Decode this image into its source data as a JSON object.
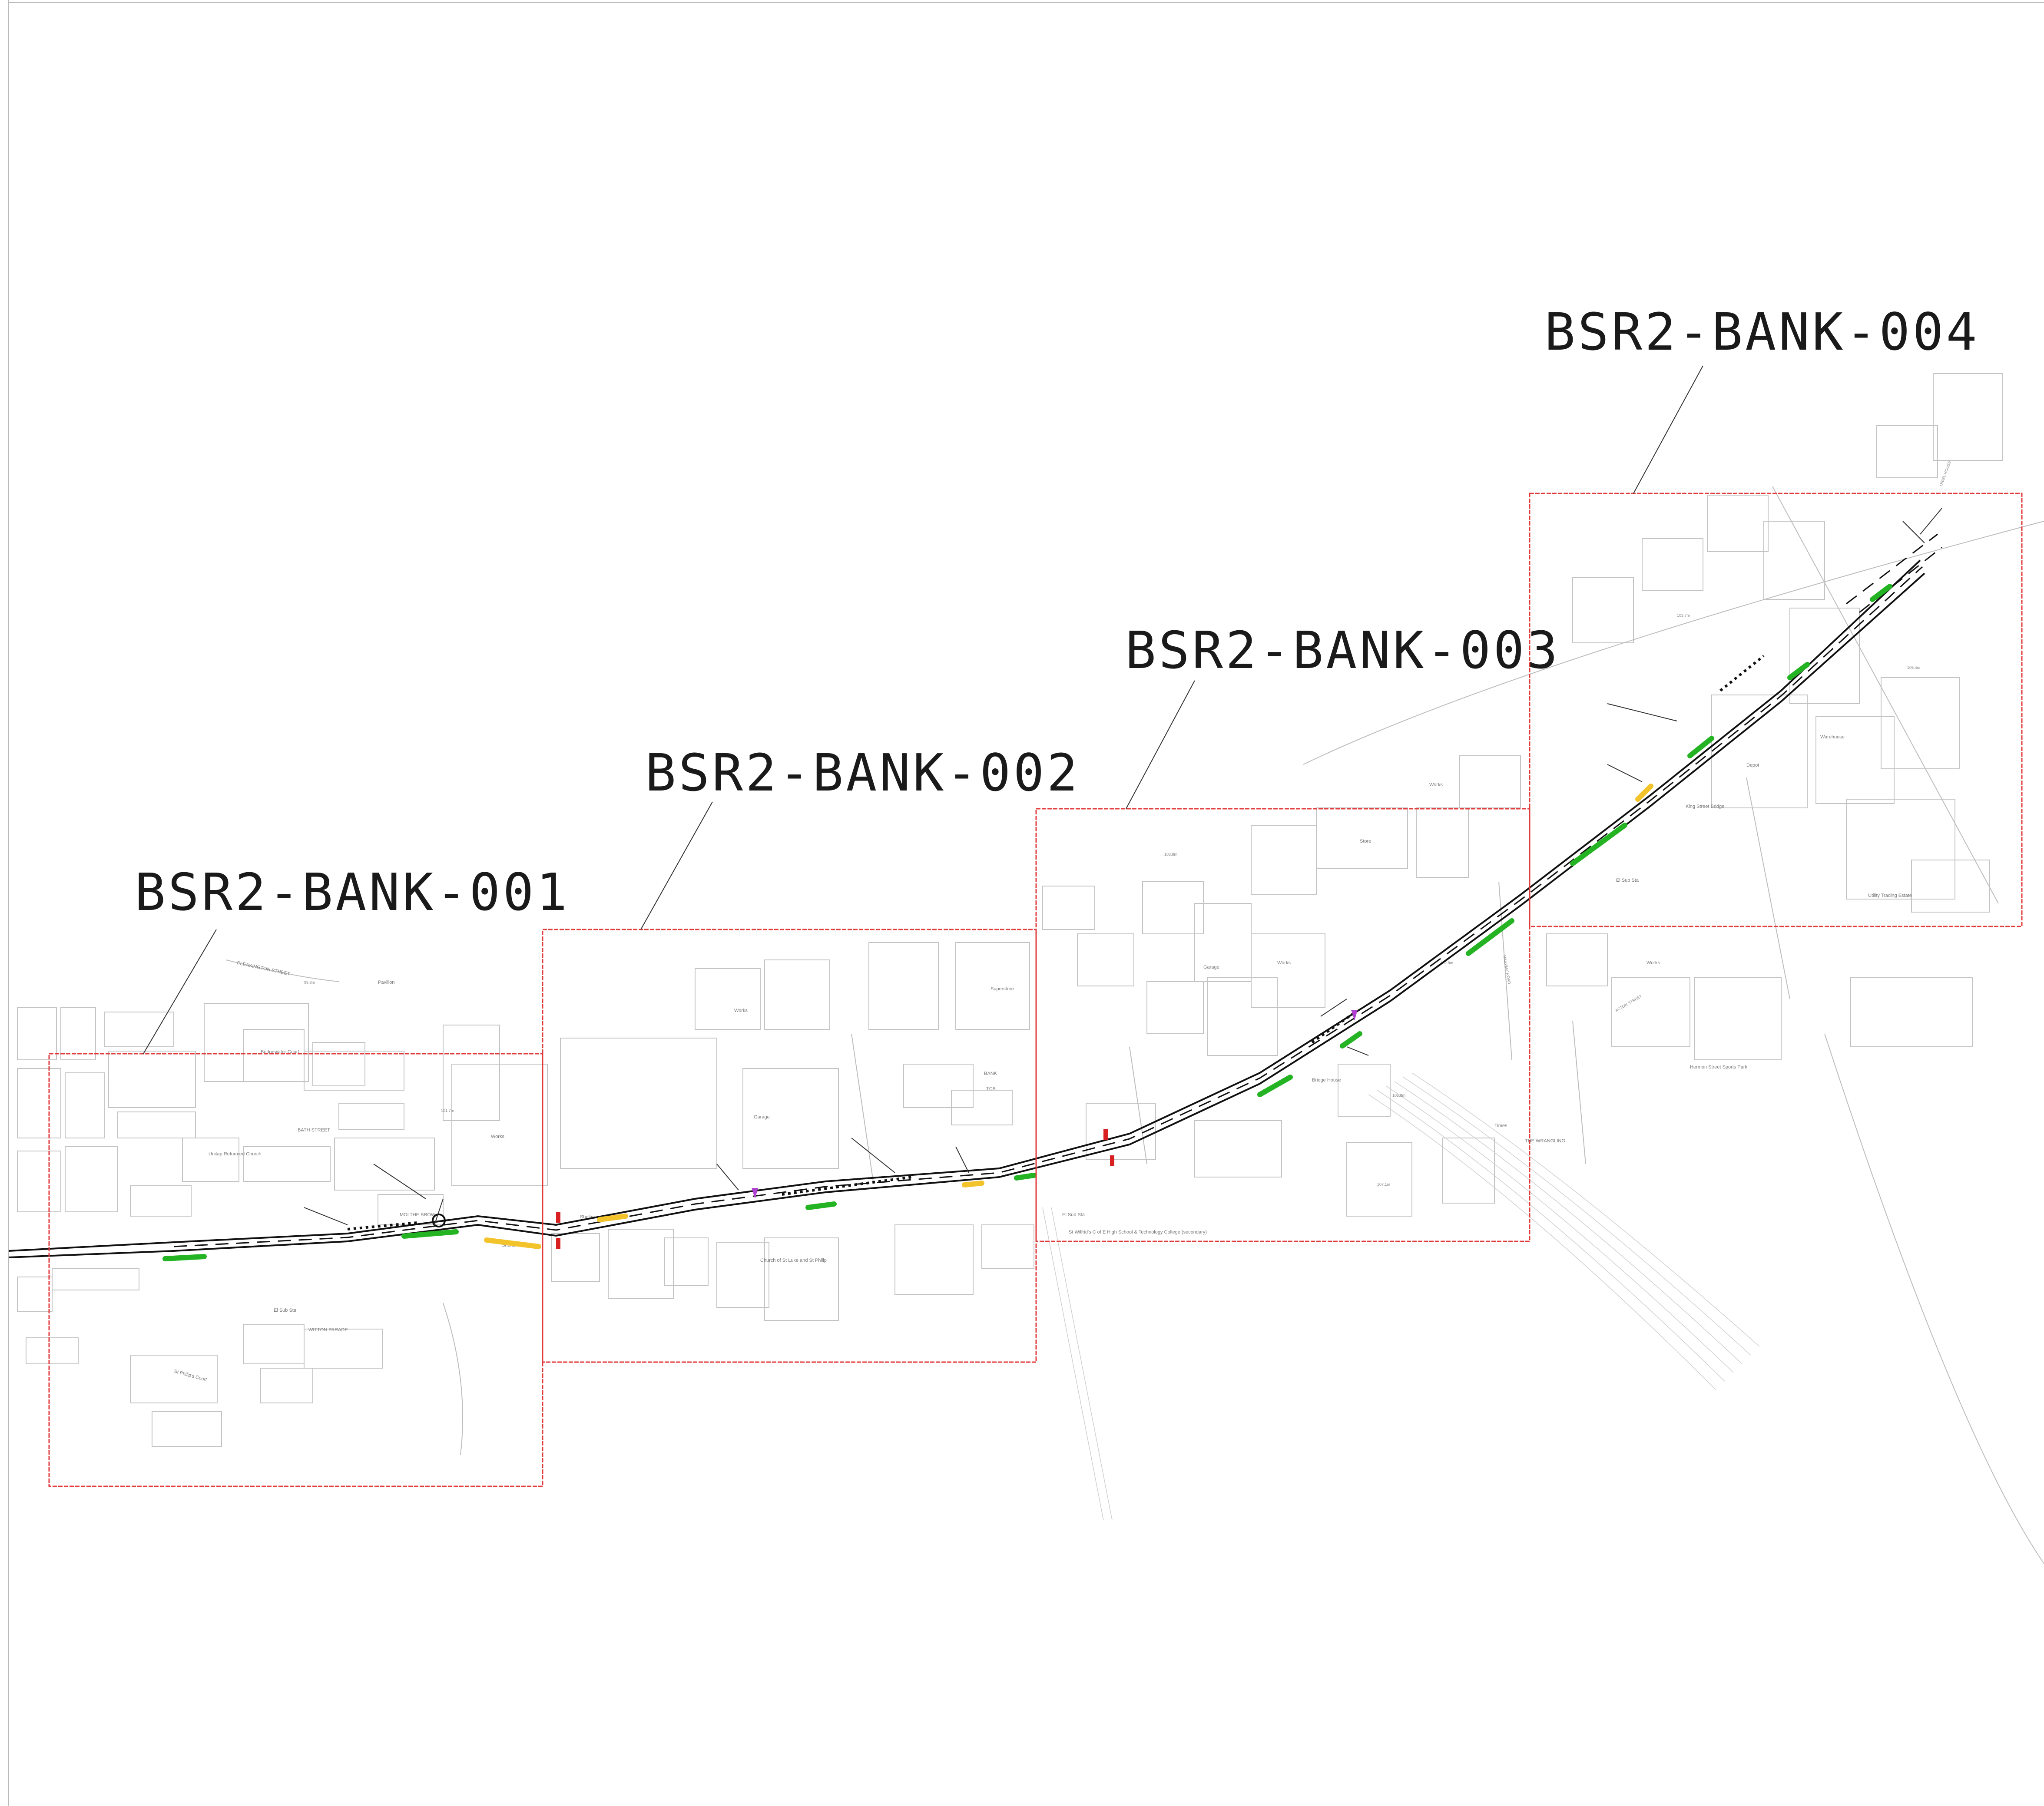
{
  "sheets": [
    {
      "title": "BSR2-BANK-001"
    },
    {
      "title": "BSR2-BANK-002"
    },
    {
      "title": "BSR2-BANK-003"
    },
    {
      "title": "BSR2-BANK-004"
    }
  ],
  "place_labels": [
    "PLEASINGTON STREET",
    "Pavilion",
    "Bridgewater Court",
    "BATH STREET",
    "Unitap Reformed Church",
    "Works",
    "MOLTHE BROW",
    "Shelter",
    "El Sub Sta",
    "WITTON PARADE",
    "St Philip's Court",
    "Superstore",
    "Works",
    "Garage",
    "BANK",
    "TCB",
    "Church of St Luke and St Philip",
    "Shelter",
    "St Wilfrid's C of E High School & Technology College (secondary)",
    "El Sub Sta",
    "Works",
    "Store",
    "Garage",
    "Works",
    "Bridge House",
    "Times",
    "THE WRANGLING",
    "King Street Bridge",
    "Warehouse",
    "Depot",
    "Utility Trading Estate",
    "ORIEL HOUSE",
    "Works",
    "El Sub Sta",
    "ACTON STREET",
    "RAILWAY ROAD",
    "Hermon Street Sports Park"
  ],
  "spot_heights": [
    "99.8m",
    "101.7m",
    "103.8m",
    "102.8m",
    "105.8m",
    "107.1m",
    "103.7m",
    "105.4m"
  ],
  "colors": {
    "frame": "#e23b3b",
    "proposed_kerb": "#23b323",
    "widening": "#f2c32a",
    "signals": "#d82020",
    "crossing": "#b040d0"
  }
}
